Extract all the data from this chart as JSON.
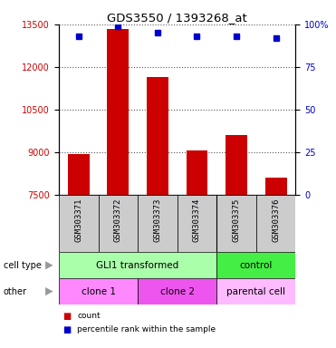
{
  "title": "GDS3550 / 1393268_at",
  "samples": [
    "GSM303371",
    "GSM303372",
    "GSM303373",
    "GSM303374",
    "GSM303375",
    "GSM303376"
  ],
  "counts": [
    8950,
    13350,
    11650,
    9050,
    9600,
    8100
  ],
  "percentile_ranks": [
    93,
    99,
    95,
    93,
    93,
    92
  ],
  "ylim": [
    7500,
    13500
  ],
  "yticks": [
    7500,
    9000,
    10500,
    12000,
    13500
  ],
  "right_yticks": [
    0,
    25,
    50,
    75,
    100
  ],
  "bar_color": "#cc0000",
  "dot_color": "#0000cc",
  "bar_bottom": 7500,
  "cell_type_row": [
    {
      "label": "GLI1 transformed",
      "span": [
        0,
        4
      ],
      "color": "#aaffaa"
    },
    {
      "label": "control",
      "span": [
        4,
        6
      ],
      "color": "#44ee44"
    }
  ],
  "other_row": [
    {
      "label": "clone 1",
      "span": [
        0,
        2
      ],
      "color": "#ff88ff"
    },
    {
      "label": "clone 2",
      "span": [
        2,
        4
      ],
      "color": "#ee55ee"
    },
    {
      "label": "parental cell",
      "span": [
        4,
        6
      ],
      "color": "#ffbbff"
    }
  ],
  "left_label_color": "#cc0000",
  "right_label_color": "#0000cc",
  "xtick_bg_color": "#cccccc",
  "grid_color": "#555555"
}
